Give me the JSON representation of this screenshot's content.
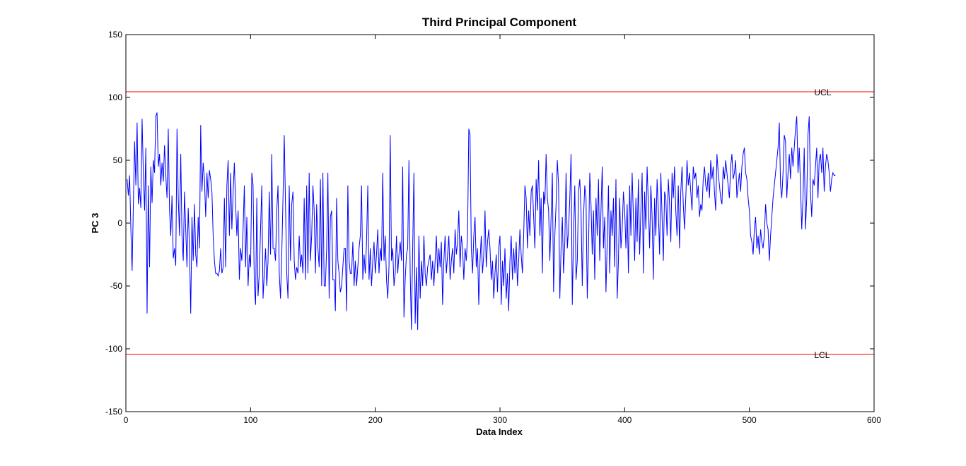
{
  "chart_data": {
    "type": "line",
    "title": "Third Principal Component",
    "xlabel": "Data Index",
    "ylabel": "PC 3",
    "xlim": [
      0,
      600
    ],
    "ylim": [
      -150,
      150
    ],
    "xticks": [
      "0",
      "100",
      "200",
      "300",
      "400",
      "500",
      "600"
    ],
    "yticks": [
      "150",
      "100",
      "50",
      "0",
      "-50",
      "-100",
      "-150"
    ],
    "grid": false,
    "limits": [
      {
        "label": "UCL",
        "value": 104.5,
        "color": "#ff0000"
      },
      {
        "label": "LCL",
        "value": -104.5,
        "color": "#ff0000"
      }
    ],
    "series": [
      {
        "color": "#0000ff",
        "x_start": 1,
        "x_step": 1,
        "values": [
          35,
          22,
          38,
          -5,
          -38,
          15,
          65,
          30,
          80,
          15,
          28,
          12,
          83,
          40,
          10,
          60,
          -72,
          30,
          -35,
          45,
          16,
          50,
          40,
          85,
          88,
          45,
          55,
          30,
          48,
          33,
          62,
          38,
          20,
          75,
          10,
          -10,
          22,
          -28,
          -20,
          -34,
          75,
          20,
          -10,
          55,
          -10,
          -30,
          25,
          -5,
          -35,
          12,
          -20,
          -72,
          5,
          -30,
          15,
          -25,
          -35,
          5,
          -20,
          78,
          25,
          48,
          35,
          5,
          40,
          20,
          42,
          35,
          25,
          -10,
          -30,
          -40,
          -40,
          -42,
          -38,
          -20,
          -40,
          -35,
          20,
          -35,
          30,
          50,
          -10,
          40,
          -5,
          25,
          48,
          15,
          -10,
          10,
          -45,
          -20,
          -30,
          -5,
          30,
          -35,
          5,
          -50,
          -25,
          -35,
          40,
          30,
          -50,
          -65,
          20,
          -58,
          -40,
          -5,
          30,
          -60,
          -40,
          -20,
          -50,
          -30,
          25,
          -25,
          55,
          -20,
          -20,
          -30,
          10,
          30,
          -40,
          -60,
          -25,
          20,
          70,
          15,
          -40,
          -60,
          30,
          -30,
          15,
          25,
          -30,
          -45,
          -35,
          -40,
          -10,
          -35,
          -25,
          -40,
          20,
          -45,
          30,
          -40,
          40,
          -30,
          -10,
          30,
          10,
          -40,
          15,
          -20,
          -35,
          35,
          -50,
          40,
          -50,
          -50,
          -20,
          40,
          -60,
          5,
          10,
          -45,
          -45,
          -70,
          20,
          -30,
          -40,
          -55,
          -50,
          -35,
          -20,
          -20,
          -70,
          30,
          -30,
          -40,
          -40,
          -15,
          -50,
          -30,
          -50,
          -35,
          -20,
          -10,
          30,
          -45,
          -25,
          -40,
          -15,
          30,
          -45,
          -20,
          -50,
          -30,
          -15,
          -40,
          -25,
          -5,
          -40,
          -20,
          -30,
          40,
          -30,
          -10,
          -45,
          -60,
          -35,
          70,
          -30,
          -20,
          -50,
          -40,
          -10,
          -40,
          -25,
          -15,
          -30,
          45,
          -75,
          -45,
          -25,
          -20,
          50,
          -40,
          -85,
          -20,
          40,
          -80,
          -35,
          -85,
          -10,
          -60,
          -30,
          -50,
          -10,
          -40,
          -50,
          -35,
          -30,
          -25,
          -45,
          -30,
          -50,
          -30,
          -10,
          -40,
          -20,
          -35,
          -15,
          -65,
          -30,
          -10,
          -40,
          -25,
          -10,
          -45,
          -30,
          -20,
          -40,
          -5,
          -25,
          -15,
          10,
          -35,
          -10,
          -20,
          -45,
          -20,
          -30,
          -10,
          75,
          70,
          -20,
          -40,
          -10,
          5,
          -35,
          -20,
          -65,
          -30,
          -10,
          -40,
          -25,
          10,
          -35,
          -15,
          -5,
          -20,
          -45,
          -30,
          -60,
          -40,
          -25,
          -55,
          -20,
          -10,
          -65,
          -30,
          -50,
          -20,
          -60,
          -40,
          -70,
          -30,
          -10,
          -45,
          -20,
          -40,
          -15,
          -50,
          -30,
          -5,
          -25,
          -40,
          -10,
          30,
          20,
          -20,
          10,
          -10,
          25,
          30,
          5,
          -20,
          35,
          10,
          50,
          -10,
          20,
          -40,
          25,
          15,
          55,
          20,
          10,
          -30,
          5,
          40,
          -55,
          -10,
          15,
          50,
          30,
          -60,
          -20,
          5,
          -40,
          -15,
          40,
          -20,
          -5,
          20,
          55,
          -65,
          -10,
          30,
          -45,
          -30,
          25,
          35,
          10,
          -50,
          5,
          30,
          20,
          -60,
          -20,
          40,
          15,
          -25,
          10,
          -45,
          20,
          -10,
          35,
          -30,
          10,
          45,
          -20,
          5,
          -55,
          -15,
          30,
          -40,
          10,
          -10,
          20,
          -35,
          35,
          -60,
          -30,
          20,
          -20,
          -5,
          25,
          10,
          -20,
          15,
          -40,
          30,
          -10,
          40,
          5,
          -30,
          20,
          -15,
          35,
          -25,
          10,
          40,
          -40,
          25,
          -5,
          45,
          15,
          -20,
          30,
          5,
          -45,
          20,
          -10,
          35,
          10,
          -25,
          40,
          5,
          -30,
          25,
          20,
          -10,
          35,
          15,
          -15,
          40,
          20,
          45,
          10,
          -10,
          30,
          -20,
          25,
          45,
          15,
          -5,
          20,
          50,
          30,
          40,
          25,
          10,
          45,
          35,
          40,
          20,
          30,
          5,
          15,
          10,
          35,
          45,
          30,
          25,
          40,
          20,
          50,
          35,
          45,
          25,
          10,
          55,
          40,
          30,
          20,
          15,
          45,
          35,
          50,
          40,
          30,
          20,
          45,
          55,
          35,
          40,
          50,
          20,
          30,
          40,
          25,
          45,
          55,
          60,
          40,
          35,
          20,
          10,
          -10,
          -15,
          -25,
          -5,
          5,
          -20,
          -10,
          -25,
          -5,
          -15,
          -20,
          -10,
          15,
          0,
          -5,
          -30,
          -10,
          5,
          20,
          30,
          40,
          50,
          60,
          80,
          30,
          20,
          40,
          70,
          65,
          20,
          40,
          55,
          35,
          60,
          45,
          60,
          75,
          85,
          40,
          60,
          30,
          -5,
          20,
          60,
          -5,
          20,
          70,
          85,
          25,
          5,
          35,
          30,
          45,
          60,
          20,
          50,
          55,
          40,
          60,
          25,
          45,
          55,
          50,
          40,
          25,
          35,
          40,
          38,
          38
        ]
      }
    ]
  }
}
